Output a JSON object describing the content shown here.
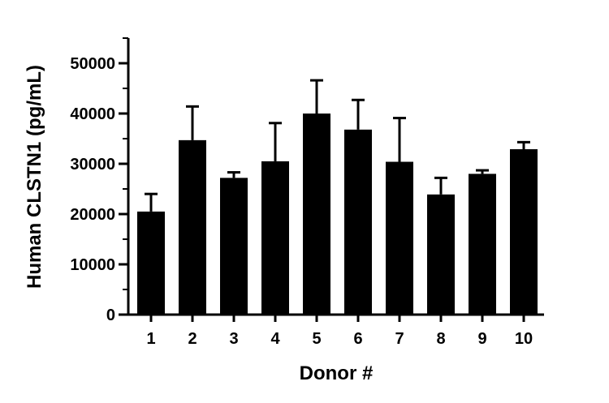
{
  "chart_data": {
    "type": "bar",
    "title": "",
    "xlabel": "Donor #",
    "ylabel": "Human CLSTN1 (pg/mL)",
    "categories": [
      "1",
      "2",
      "3",
      "4",
      "5",
      "6",
      "7",
      "8",
      "9",
      "10"
    ],
    "values": [
      20500,
      34700,
      27200,
      30500,
      40000,
      36800,
      30400,
      23900,
      28000,
      32900
    ],
    "errors": [
      3500,
      6700,
      1100,
      7600,
      6600,
      5900,
      8700,
      3300,
      700,
      1400
    ],
    "ylim": [
      0,
      55000
    ],
    "yticks": [
      0,
      10000,
      20000,
      30000,
      40000,
      50000
    ],
    "ytick_labels": [
      "0",
      "10000",
      "20000",
      "30000",
      "40000",
      "50000"
    ],
    "grid": false,
    "bar_color": "#000000"
  }
}
